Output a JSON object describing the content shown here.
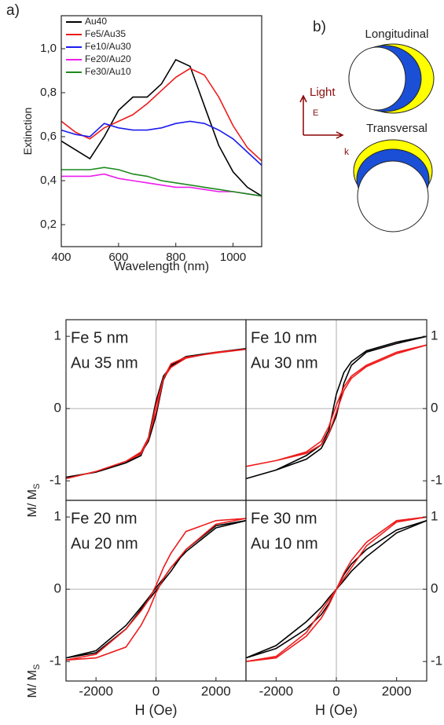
{
  "chart_data": [
    {
      "type": "line",
      "panel_label": "a)",
      "x_label": "Wavelength (nm)",
      "y_label": "Extinction",
      "x": [
        400,
        450,
        500,
        550,
        600,
        650,
        700,
        750,
        800,
        850,
        900,
        950,
        1000,
        1050,
        1100
      ],
      "xlim": [
        400,
        1100
      ],
      "xticks": [
        400,
        600,
        800,
        1000
      ],
      "ylim": [
        0.1,
        1.15
      ],
      "yticks": [
        {
          "value": 0.2,
          "label": "0,2"
        },
        {
          "value": 0.4,
          "label": "0,4"
        },
        {
          "value": 0.6,
          "label": "0,6"
        },
        {
          "value": 0.8,
          "label": "0,8"
        },
        {
          "value": 1.0,
          "label": "1,0"
        }
      ],
      "legend": "top-left",
      "series": [
        {
          "name": "Au40",
          "color": "#000000",
          "values": [
            0.58,
            0.54,
            0.5,
            0.6,
            0.72,
            0.78,
            0.78,
            0.84,
            0.95,
            0.92,
            0.74,
            0.56,
            0.44,
            0.37,
            0.33
          ]
        },
        {
          "name": "Fe5/Au35",
          "color": "#ee1c1c",
          "values": [
            0.67,
            0.62,
            0.59,
            0.64,
            0.67,
            0.7,
            0.75,
            0.81,
            0.87,
            0.91,
            0.88,
            0.78,
            0.65,
            0.55,
            0.49
          ]
        },
        {
          "name": "Fe10/Au30",
          "color": "#1c1cee",
          "values": [
            0.63,
            0.61,
            0.6,
            0.66,
            0.64,
            0.63,
            0.63,
            0.64,
            0.66,
            0.67,
            0.66,
            0.63,
            0.59,
            0.53,
            0.47
          ]
        },
        {
          "name": "Fe20/Au20",
          "color": "#ee1cee",
          "values": [
            0.42,
            0.42,
            0.42,
            0.43,
            0.41,
            0.4,
            0.39,
            0.38,
            0.37,
            0.37,
            0.36,
            0.35,
            0.35,
            0.34,
            0.33
          ]
        },
        {
          "name": "Fe30/Au10",
          "color": "#1c8a1c",
          "values": [
            0.45,
            0.45,
            0.45,
            0.46,
            0.45,
            0.43,
            0.42,
            0.4,
            0.39,
            0.38,
            0.37,
            0.36,
            0.35,
            0.34,
            0.33
          ]
        }
      ]
    },
    {
      "type": "line",
      "annotations": [
        "Fe 5 nm",
        "Au 35 nm"
      ],
      "y_label": "M/ M",
      "y_label_subscript": "S",
      "xlim": [
        -3000,
        3000
      ],
      "ylim": [
        -1.27,
        1.23
      ],
      "yticks": [
        -1,
        0,
        1
      ],
      "series": [
        {
          "color": "#000000",
          "x": [
            3000,
            2000,
            1000,
            500,
            250,
            0,
            -250,
            -500,
            -1000,
            -2000,
            -3000,
            -3000,
            -2000,
            -1000,
            -500,
            -250,
            0,
            250,
            500,
            1000,
            2000,
            3000
          ],
          "values": [
            0.83,
            0.78,
            0.7,
            0.58,
            0.45,
            0.1,
            -0.4,
            -0.65,
            -0.75,
            -0.88,
            -0.95,
            -0.95,
            -0.88,
            -0.75,
            -0.62,
            -0.45,
            -0.1,
            0.4,
            0.6,
            0.72,
            0.78,
            0.83
          ]
        },
        {
          "color": "#ee1c1c",
          "x": [
            3000,
            2000,
            1000,
            500,
            250,
            0,
            -250,
            -500,
            -1000,
            -2000,
            -3000,
            -3000,
            -2000,
            -1000,
            -500,
            -250,
            0,
            250,
            500,
            1000,
            2000,
            3000
          ],
          "values": [
            0.82,
            0.78,
            0.7,
            0.57,
            0.42,
            0.05,
            -0.42,
            -0.63,
            -0.73,
            -0.87,
            -0.97,
            -0.97,
            -0.87,
            -0.73,
            -0.6,
            -0.4,
            -0.05,
            0.42,
            0.62,
            0.71,
            0.77,
            0.82
          ]
        }
      ]
    },
    {
      "type": "line",
      "annotations": [
        "Fe 10 nm",
        "Au 30 nm"
      ],
      "xlim": [
        -3000,
        3000
      ],
      "ylim": [
        -1.27,
        1.23
      ],
      "yticks": [
        -1,
        0,
        1
      ],
      "series": [
        {
          "color": "#000000",
          "x": [
            3000,
            2000,
            1000,
            500,
            250,
            0,
            -250,
            -500,
            -1000,
            -2000,
            -3000,
            -3000,
            -2000,
            -1000,
            -500,
            -250,
            0,
            250,
            500,
            1000,
            2000,
            3000
          ],
          "values": [
            1.0,
            0.92,
            0.8,
            0.65,
            0.5,
            0.2,
            -0.3,
            -0.5,
            -0.65,
            -0.85,
            -0.97,
            -0.97,
            -0.85,
            -0.7,
            -0.55,
            -0.35,
            -0.1,
            0.35,
            0.6,
            0.78,
            0.9,
            1.0
          ]
        },
        {
          "color": "#ee1c1c",
          "x": [
            3000,
            2000,
            1000,
            500,
            250,
            0,
            -250,
            -500,
            -1000,
            -2000,
            -3000,
            -3000,
            -2000,
            -1000,
            -500,
            -250,
            0,
            250,
            500,
            1000,
            2000,
            3000
          ],
          "values": [
            0.88,
            0.78,
            0.6,
            0.45,
            0.3,
            0.05,
            -0.25,
            -0.45,
            -0.6,
            -0.72,
            -0.8,
            -0.8,
            -0.72,
            -0.62,
            -0.5,
            -0.35,
            -0.05,
            0.25,
            0.42,
            0.58,
            0.76,
            0.88
          ]
        }
      ]
    },
    {
      "type": "line",
      "annotations": [
        "Fe 20 nm",
        "Au 20 nm"
      ],
      "x_label": "H (Oe)",
      "y_label": "M/ M",
      "y_label_subscript": "S",
      "xlim": [
        -3000,
        3000
      ],
      "xticks": [
        -2000,
        0,
        2000
      ],
      "ylim": [
        -1.27,
        1.23
      ],
      "yticks": [
        -1,
        0,
        1
      ],
      "series": [
        {
          "color": "#000000",
          "x": [
            3000,
            2000,
            1000,
            500,
            250,
            0,
            -250,
            -500,
            -1000,
            -2000,
            -3000,
            -3000,
            -2000,
            -1000,
            -500,
            -250,
            0,
            250,
            500,
            1000,
            2000,
            3000
          ],
          "values": [
            0.95,
            0.88,
            0.55,
            0.25,
            0.12,
            -0.02,
            -0.15,
            -0.28,
            -0.55,
            -0.88,
            -0.95,
            -0.95,
            -0.85,
            -0.5,
            -0.25,
            -0.12,
            0.02,
            0.15,
            0.3,
            0.52,
            0.85,
            0.95
          ]
        },
        {
          "color": "#ee1c1c",
          "x": [
            3000,
            2000,
            1000,
            500,
            250,
            0,
            -250,
            -500,
            -1000,
            -2000,
            -3000,
            -3000,
            -2000,
            -1000,
            -500,
            -250,
            0,
            250,
            500,
            1000,
            2000,
            3000
          ],
          "values": [
            0.98,
            0.95,
            0.8,
            0.5,
            0.3,
            0.05,
            -0.15,
            -0.3,
            -0.55,
            -0.9,
            -0.98,
            -0.98,
            -0.95,
            -0.8,
            -0.5,
            -0.3,
            -0.05,
            0.15,
            0.3,
            0.55,
            0.9,
            0.98
          ]
        }
      ]
    },
    {
      "type": "line",
      "annotations": [
        "Fe 30 nm",
        "Au 10 nm"
      ],
      "x_label": "H (Oe)",
      "xlim": [
        -3000,
        3000
      ],
      "xticks": [
        -2000,
        0,
        2000
      ],
      "ylim": [
        -1.27,
        1.23
      ],
      "yticks": [
        -1,
        0,
        1
      ],
      "series": [
        {
          "color": "#000000",
          "x": [
            3000,
            2000,
            1000,
            500,
            250,
            0,
            -250,
            -500,
            -1000,
            -2000,
            -3000,
            -3000,
            -2000,
            -1000,
            -500,
            -250,
            0,
            250,
            500,
            1000,
            2000,
            3000
          ],
          "values": [
            0.95,
            0.82,
            0.55,
            0.35,
            0.2,
            0.0,
            -0.12,
            -0.25,
            -0.45,
            -0.78,
            -0.95,
            -0.95,
            -0.82,
            -0.55,
            -0.35,
            -0.2,
            0.0,
            0.12,
            0.25,
            0.45,
            0.78,
            0.95
          ]
        },
        {
          "color": "#ee1c1c",
          "x": [
            3000,
            2000,
            1000,
            500,
            250,
            0,
            -250,
            -500,
            -1000,
            -2000,
            -3000,
            -3000,
            -2000,
            -1000,
            -500,
            -250,
            0,
            250,
            500,
            1000,
            2000,
            3000
          ],
          "values": [
            1.0,
            0.95,
            0.65,
            0.4,
            0.22,
            0.0,
            -0.15,
            -0.3,
            -0.6,
            -0.93,
            -1.0,
            -1.0,
            -0.95,
            -0.65,
            -0.4,
            -0.22,
            0.0,
            0.15,
            0.3,
            0.6,
            0.93,
            1.0
          ]
        }
      ]
    }
  ],
  "diagram": {
    "panel_label": "b)",
    "longitudinal": "Longitudinal",
    "transversal": "Transversal",
    "light": "Light",
    "e_field": "E",
    "k_vector": "k"
  }
}
